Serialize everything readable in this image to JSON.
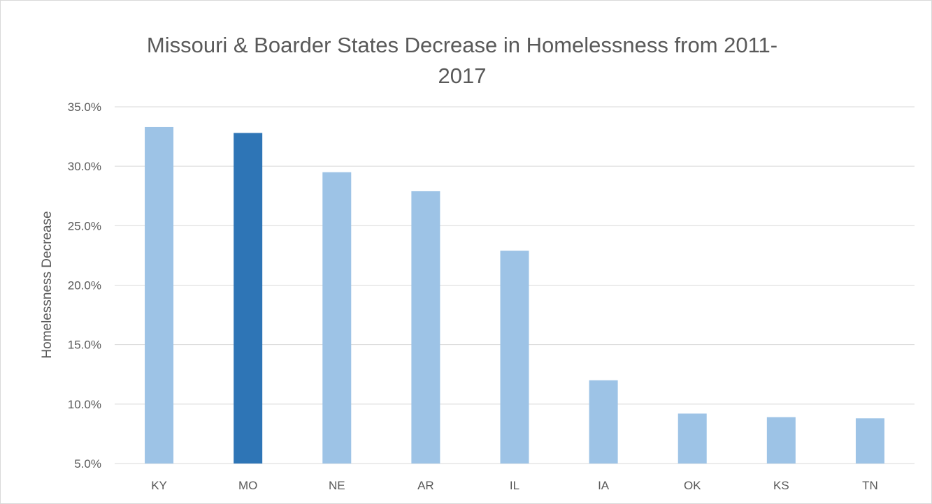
{
  "chart_data": {
    "type": "bar",
    "title": "Missouri & Boarder States Decrease in Homelessness from 2011-2017",
    "xlabel": "",
    "ylabel": "Homelessness Decrease",
    "categories": [
      "KY",
      "MO",
      "NE",
      "AR",
      "IL",
      "IA",
      "OK",
      "KS",
      "TN"
    ],
    "values": [
      33.3,
      32.8,
      29.5,
      27.9,
      22.9,
      12.0,
      9.2,
      8.9,
      8.8
    ],
    "value_format": "percent",
    "ylim": [
      5,
      35
    ],
    "y_ticks": [
      "5.0%",
      "10.0%",
      "15.0%",
      "20.0%",
      "25.0%",
      "30.0%",
      "35.0%"
    ],
    "grid": true,
    "legend": "none",
    "colors": {
      "bar": "#9dc3e6",
      "highlight": "#2e75b6",
      "highlight_category": "MO",
      "grid": "#d9d9d9",
      "text": "#595959"
    }
  }
}
